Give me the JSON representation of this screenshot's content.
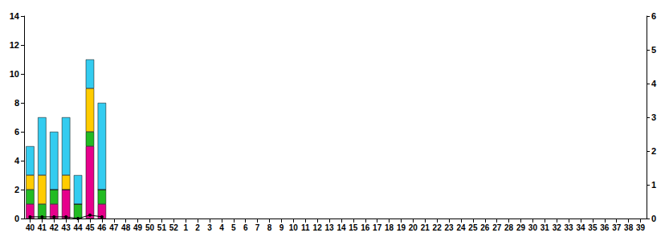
{
  "chart_data": {
    "type": "bar",
    "stacked": true,
    "grid": false,
    "categories": [
      "40",
      "41",
      "42",
      "43",
      "44",
      "45",
      "46",
      "47",
      "48",
      "49",
      "50",
      "51",
      "52",
      "1",
      "2",
      "3",
      "4",
      "5",
      "6",
      "7",
      "8",
      "9",
      "10",
      "11",
      "12",
      "13",
      "14",
      "15",
      "16",
      "17",
      "18",
      "19",
      "20",
      "21",
      "22",
      "23",
      "24",
      "25",
      "26",
      "27",
      "28",
      "29",
      "30",
      "31",
      "32",
      "33",
      "34",
      "35",
      "36",
      "37",
      "38",
      "39"
    ],
    "ylim": [
      0,
      14
    ],
    "yticks": [
      0,
      2,
      4,
      6,
      8,
      10,
      12,
      14
    ],
    "y2lim": [
      0,
      6
    ],
    "y2ticks": [
      0,
      1,
      2,
      3,
      4,
      5,
      6
    ],
    "series": [
      {
        "type": "bar",
        "color": "#e6008c",
        "values": [
          1,
          0,
          1,
          2,
          0,
          5,
          1,
          null,
          null,
          null,
          null,
          null,
          null,
          null,
          null,
          null,
          null,
          null,
          null,
          null,
          null,
          null,
          null,
          null,
          null,
          null,
          null,
          null,
          null,
          null,
          null,
          null,
          null,
          null,
          null,
          null,
          null,
          null,
          null,
          null,
          null,
          null,
          null,
          null,
          null,
          null,
          null,
          null,
          null,
          null,
          null,
          null
        ]
      },
      {
        "type": "bar",
        "color": "#22bb22",
        "values": [
          1,
          1,
          1,
          0,
          1,
          1,
          1,
          null,
          null,
          null,
          null,
          null,
          null,
          null,
          null,
          null,
          null,
          null,
          null,
          null,
          null,
          null,
          null,
          null,
          null,
          null,
          null,
          null,
          null,
          null,
          null,
          null,
          null,
          null,
          null,
          null,
          null,
          null,
          null,
          null,
          null,
          null,
          null,
          null,
          null,
          null,
          null,
          null,
          null,
          null,
          null,
          null
        ]
      },
      {
        "type": "bar",
        "color": "#ffcc00",
        "values": [
          1,
          2,
          0,
          1,
          0,
          3,
          0,
          null,
          null,
          null,
          null,
          null,
          null,
          null,
          null,
          null,
          null,
          null,
          null,
          null,
          null,
          null,
          null,
          null,
          null,
          null,
          null,
          null,
          null,
          null,
          null,
          null,
          null,
          null,
          null,
          null,
          null,
          null,
          null,
          null,
          null,
          null,
          null,
          null,
          null,
          null,
          null,
          null,
          null,
          null,
          null,
          null
        ]
      },
      {
        "type": "bar",
        "color": "#33ccf0",
        "values": [
          2,
          4,
          4,
          4,
          2,
          2,
          6,
          null,
          null,
          null,
          null,
          null,
          null,
          null,
          null,
          null,
          null,
          null,
          null,
          null,
          null,
          null,
          null,
          null,
          null,
          null,
          null,
          null,
          null,
          null,
          null,
          null,
          null,
          null,
          null,
          null,
          null,
          null,
          null,
          null,
          null,
          null,
          null,
          null,
          null,
          null,
          null,
          null,
          null,
          null,
          null,
          null
        ]
      },
      {
        "type": "line",
        "axis": "y2",
        "color": "#000000",
        "marker": "circle",
        "values": [
          0.05,
          0.05,
          0.05,
          0.05,
          0,
          0.1,
          0.05,
          null,
          null,
          null,
          null,
          null,
          null,
          null,
          null,
          null,
          null,
          null,
          null,
          null,
          null,
          null,
          null,
          null,
          null,
          null,
          null,
          null,
          null,
          null,
          null,
          null,
          null,
          null,
          null,
          null,
          null,
          null,
          null,
          null,
          null,
          null,
          null,
          null,
          null,
          null,
          null,
          null,
          null,
          null,
          null,
          null
        ]
      }
    ]
  }
}
